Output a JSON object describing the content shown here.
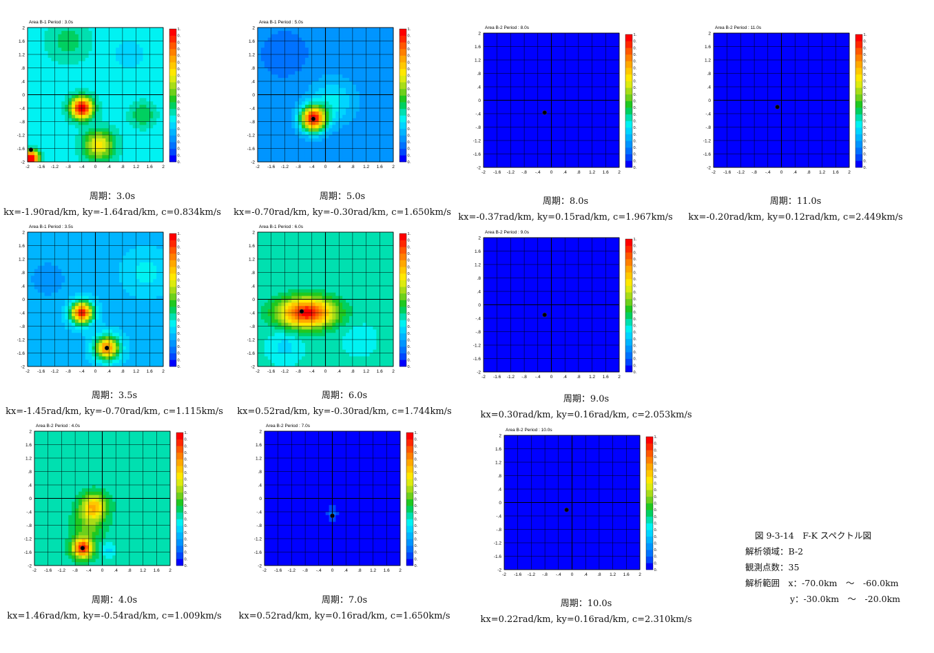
{
  "colors": {
    "scale": [
      "#0000ff",
      "#0047ff",
      "#0072ff",
      "#0095ff",
      "#00b5ff",
      "#00d5ff",
      "#00f2f2",
      "#00e0b0",
      "#00d060",
      "#20c820",
      "#6ed01c",
      "#a8dc18",
      "#dceb10",
      "#ffe800",
      "#ffc800",
      "#ffa800",
      "#ff8000",
      "#ff5800",
      "#ff2800",
      "#ff0000"
    ],
    "grid": "#000000",
    "peak_marker": "#000000"
  },
  "colorbar_labels": [
    "1.00",
    "0.95",
    "0.90",
    "0.85",
    "0.80",
    "0.75",
    "0.70",
    "0.65",
    "0.60",
    "0.55",
    "0.50",
    "0.45",
    "0.40",
    "0.35",
    "0.30",
    "0.25",
    "0.20",
    "0.15",
    "0.10",
    "0.05",
    "0.00"
  ],
  "chart_data": [
    {
      "type": "heatmap",
      "title": "Area B-1  Period : 3.0s",
      "period_caption": "周期：3.0s",
      "params_caption": "kx=-1.90rad/km, ky=-1.64rad/km, c=0.834km/s",
      "x_ticks": [
        "-2",
        "-1.6",
        "-1.2",
        "-.8",
        "-.4",
        "0",
        ".4",
        ".8",
        "1.2",
        "1.6",
        "2"
      ],
      "y_ticks": [
        "2",
        "1.6",
        "1.2",
        ".8",
        ".4",
        "0",
        "-.4",
        "-.8",
        "-1.2",
        "-1.6",
        "-2"
      ],
      "xlim": [
        -2,
        2
      ],
      "ylim": [
        -2,
        2
      ],
      "background": 0.33,
      "peak": {
        "kx": -1.9,
        "ky": -1.64
      },
      "blobs": [
        {
          "kx": -0.4,
          "ky": -0.4,
          "amp": 0.68,
          "sigma": 0.22
        },
        {
          "kx": -1.9,
          "ky": -1.9,
          "amp": 0.72,
          "sigma": 0.16
        },
        {
          "kx": 0.1,
          "ky": -1.5,
          "amp": 0.35,
          "sigma": 0.3
        },
        {
          "kx": 1.4,
          "ky": -0.6,
          "amp": 0.12,
          "sigma": 0.25
        },
        {
          "kx": -0.8,
          "ky": 1.6,
          "amp": 0.1,
          "sigma": 0.4
        },
        {
          "kx": 1.0,
          "ky": 1.2,
          "amp": -0.08,
          "sigma": 0.3
        }
      ]
    },
    {
      "type": "heatmap",
      "title": "Area B-1  Period : 5.0s",
      "period_caption": "周期：5.0s",
      "params_caption": "kx=-0.70rad/km, ky=-0.30rad/km, c=1.650km/s",
      "x_ticks": [
        "-2",
        "-1.6",
        "-1.2",
        "-.8",
        "-.4",
        "0",
        ".4",
        ".8",
        "1.2",
        "1.6",
        "2"
      ],
      "y_ticks": [
        "2",
        "1.6",
        "1.2",
        ".8",
        ".4",
        "0",
        "-.4",
        "-.8",
        "-1.2",
        "-1.6",
        "-2"
      ],
      "xlim": [
        -2,
        2
      ],
      "ylim": [
        -2,
        2
      ],
      "background": 0.17,
      "peak": {
        "kx": -0.36,
        "ky": -0.72
      },
      "blobs": [
        {
          "kx": -0.36,
          "ky": -0.72,
          "amp": 0.78,
          "sigma": 0.26
        },
        {
          "kx": 0.2,
          "ky": -0.2,
          "amp": 0.15,
          "sigma": 0.45
        },
        {
          "kx": -1.2,
          "ky": 1.2,
          "amp": -0.05,
          "sigma": 0.5
        }
      ]
    },
    {
      "type": "heatmap",
      "title": "Area B-2  Period : 8.0s",
      "period_caption": "周期：8.0s",
      "params_caption": "kx=-0.37rad/km, ky=0.15rad/km, c=1.967km/s",
      "x_ticks": [
        "-2",
        "-1.6",
        "-1.2",
        "-.8",
        "-.4",
        "0",
        ".4",
        ".8",
        "1.2",
        "1.6",
        "2"
      ],
      "y_ticks": [
        "2",
        "1.6",
        "1.2",
        ".8",
        ".4",
        "0",
        "-.4",
        "-.8",
        "-1.2",
        "-1.6",
        "-2"
      ],
      "xlim": [
        -2,
        2
      ],
      "ylim": [
        -2,
        2
      ],
      "background": 0.0,
      "peak": {
        "kx": -0.2,
        "ky": -0.37
      },
      "blobs": []
    },
    {
      "type": "heatmap",
      "title": "Area B-2  Period : 11.0s",
      "period_caption": "周期：11.0s",
      "params_caption": "kx=-0.20rad/km, ky=0.12rad/km, c=2.449km/s",
      "x_ticks": [
        "-2",
        "-1.6",
        "-1.2",
        "-.8",
        "-.4",
        "0",
        ".4",
        ".8",
        "1.2",
        "1.6",
        "2"
      ],
      "y_ticks": [
        "2",
        "1.6",
        "1.2",
        ".8",
        ".4",
        "0",
        "-.4",
        "-.8",
        "-1.2",
        "-1.6",
        "-2"
      ],
      "xlim": [
        -2,
        2
      ],
      "ylim": [
        -2,
        2
      ],
      "background": 0.0,
      "peak": {
        "kx": -0.12,
        "ky": -0.2
      },
      "blobs": []
    },
    {
      "type": "heatmap",
      "title": "Area B-1  Period : 3.5s",
      "period_caption": "周期：3.5s",
      "params_caption": "kx=-1.45rad/km, ky=-0.70rad/km, c=1.115km/s",
      "x_ticks": [
        "-2",
        "-1.6",
        "-1.2",
        "-.8",
        "-.4",
        "0",
        ".4",
        ".8",
        "1.2",
        "1.6",
        "2"
      ],
      "y_ticks": [
        "2",
        "1.6",
        "1.2",
        ".8",
        ".4",
        "0",
        "-.4",
        "-.8",
        "-1.2",
        "-1.6",
        "-2"
      ],
      "xlim": [
        -2,
        2
      ],
      "ylim": [
        -2,
        2
      ],
      "background": 0.24,
      "peak": {
        "kx": 0.34,
        "ky": -1.45
      },
      "blobs": [
        {
          "kx": -0.4,
          "ky": -0.4,
          "amp": 0.72,
          "sigma": 0.22
        },
        {
          "kx": 0.34,
          "ky": -1.45,
          "amp": 0.6,
          "sigma": 0.24
        },
        {
          "kx": -1.4,
          "ky": 0.6,
          "amp": -0.08,
          "sigma": 0.4
        },
        {
          "kx": 1.5,
          "ky": 0.8,
          "amp": 0.08,
          "sigma": 0.4
        }
      ]
    },
    {
      "type": "heatmap",
      "title": "Area B-1  Period : 6.0s",
      "period_caption": "周期：6.0s",
      "params_caption": "kx=0.52rad/km, ky=-0.30rad/km, c=1.744km/s",
      "x_ticks": [
        "-2",
        "-1.6",
        "-1.2",
        "-.8",
        "-.4",
        "0",
        ".4",
        ".8",
        "1.2",
        "1.6",
        "2"
      ],
      "y_ticks": [
        "2",
        "1.6",
        "1.2",
        ".8",
        ".4",
        "0",
        "-.4",
        "-.8",
        "-1.2",
        "-1.6",
        "-2"
      ],
      "xlim": [
        -2,
        2
      ],
      "ylim": [
        -2,
        2
      ],
      "background": 0.36,
      "peak": {
        "kx": -0.7,
        "ky": -0.36
      },
      "blobs": [
        {
          "kx": -0.55,
          "ky": -0.4,
          "amp": 0.62,
          "sigma": 0.3,
          "sx": 1.9
        },
        {
          "kx": -1.2,
          "ky": -1.4,
          "amp": -0.08,
          "sigma": 0.3
        },
        {
          "kx": 1.0,
          "ky": -1.2,
          "amp": -0.05,
          "sigma": 0.3
        }
      ]
    },
    {
      "type": "heatmap",
      "title": "Area B-2  Period : 9.0s",
      "period_caption": "周期：9.0s",
      "params_caption": "kx=0.30rad/km, ky=0.16rad/km, c=2.053km/s",
      "x_ticks": [
        "-2",
        "-1.6",
        "-1.2",
        "-.8",
        "-.4",
        "0",
        ".4",
        ".8",
        "1.2",
        "1.6",
        "2"
      ],
      "y_ticks": [
        "2",
        "1.6",
        "1.2",
        ".8",
        ".4",
        "0",
        "-.4",
        "-.8",
        "-1.2",
        "-1.6",
        "-2"
      ],
      "xlim": [
        -2,
        2
      ],
      "ylim": [
        -2,
        2
      ],
      "background": 0.0,
      "peak": {
        "kx": -0.2,
        "ky": -0.3
      },
      "blobs": []
    },
    {
      "type": "heatmap",
      "title": "Area B-2  Period : 4.0s",
      "period_caption": "周期：4.0s",
      "params_caption": "kx=1.46rad/km, ky=-0.54rad/km, c=1.009km/s",
      "x_ticks": [
        "-2",
        "-1.6",
        "-1.2",
        "-.8",
        "-.4",
        "0",
        ".4",
        ".8",
        "1.2",
        "1.6",
        "2"
      ],
      "y_ticks": [
        "2",
        "1.6",
        "1.2",
        ".8",
        ".4",
        "0",
        "-.4",
        "-.8",
        "-1.2",
        "-1.6",
        "-2"
      ],
      "xlim": [
        -2,
        2
      ],
      "ylim": [
        -2,
        2
      ],
      "background": 0.38,
      "peak": {
        "kx": -0.58,
        "ky": -1.48
      },
      "blobs": [
        {
          "kx": -0.25,
          "ky": -0.25,
          "amp": 0.38,
          "sigma": 0.25
        },
        {
          "kx": -0.58,
          "ky": -1.48,
          "amp": 0.58,
          "sigma": 0.2
        },
        {
          "kx": -0.4,
          "ky": -0.8,
          "amp": 0.14,
          "sigma": 0.3
        },
        {
          "kx": 0.2,
          "ky": -1.55,
          "amp": -0.1,
          "sigma": 0.15
        }
      ]
    },
    {
      "type": "heatmap",
      "title": "Area B-2  Period : 7.0s",
      "period_caption": "周期：7.0s",
      "params_caption": "kx=0.52rad/km, ky=0.16rad/km, c=1.650km/s",
      "x_ticks": [
        "-2",
        "-1.6",
        "-1.2",
        "-.8",
        "-.4",
        "0",
        ".4",
        ".8",
        "1.2",
        "1.6",
        "2"
      ],
      "y_ticks": [
        "2",
        "1.6",
        "1.2",
        ".8",
        ".4",
        "0",
        "-.4",
        "-.8",
        "-1.2",
        "-1.6",
        "-2"
      ],
      "xlim": [
        -2,
        2
      ],
      "ylim": [
        -2,
        2
      ],
      "background": 0.0,
      "peak": {
        "kx": 0.0,
        "ky": -0.52
      },
      "blobs": [
        {
          "kx": 0.0,
          "ky": -0.45,
          "amp": 0.12,
          "sigma": 0.12,
          "sy": 1.6
        }
      ]
    },
    {
      "type": "heatmap",
      "title": "Area B-2  Period : 10.0s",
      "period_caption": "周期：10.0s",
      "params_caption": "kx=0.22rad/km, ky=0.16rad/km, c=2.310km/s",
      "x_ticks": [
        "-2",
        "-1.6",
        "-1.2",
        "-.8",
        "-.4",
        "0",
        ".4",
        ".8",
        "1.2",
        "1.6",
        "2"
      ],
      "y_ticks": [
        "2",
        "1.6",
        "1.2",
        ".8",
        ".4",
        "0",
        "-.4",
        "-.8",
        "-1.2",
        "-1.6",
        "-2"
      ],
      "xlim": [
        -2,
        2
      ],
      "ylim": [
        -2,
        2
      ],
      "background": 0.0,
      "peak": {
        "kx": -0.16,
        "ky": -0.22
      },
      "blobs": []
    }
  ],
  "figure_caption": {
    "title": "図 9-3-14　F-K スペクトル図",
    "area": "解析領域：B-2",
    "points": "観測点数：35",
    "range_x": "解析範囲　x：-70.0km　～　-60.0km",
    "range_y": "y：-30.0km　～　-20.0km"
  }
}
